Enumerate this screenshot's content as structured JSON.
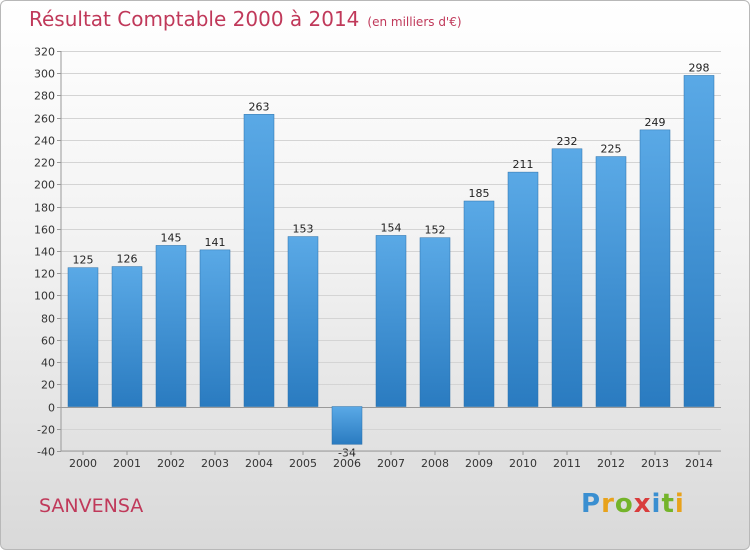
{
  "title": "Résultat Comptable 2000 à 2014",
  "unit": "(en milliers d'€)",
  "city": "SANVENSA",
  "logo": "Proxiti",
  "colors": {
    "bar_top": "#5aa9e6",
    "bar_bottom": "#2a7bc0",
    "title": "#c0395a"
  },
  "chart_data": {
    "type": "bar",
    "categories": [
      "2000",
      "2001",
      "2002",
      "2003",
      "2004",
      "2005",
      "2006",
      "2007",
      "2008",
      "2009",
      "2010",
      "2011",
      "2012",
      "2013",
      "2014"
    ],
    "values": [
      125,
      126,
      145,
      141,
      263,
      153,
      -34,
      154,
      152,
      185,
      211,
      232,
      225,
      249,
      298
    ],
    "title": "Résultat Comptable 2000 à 2014",
    "xlabel": "",
    "ylabel": "",
    "ylim": [
      -40,
      320
    ],
    "yticks": [
      -40,
      -20,
      0,
      20,
      40,
      60,
      80,
      100,
      120,
      140,
      160,
      180,
      200,
      220,
      240,
      260,
      280,
      300,
      320
    ],
    "grid": true
  }
}
